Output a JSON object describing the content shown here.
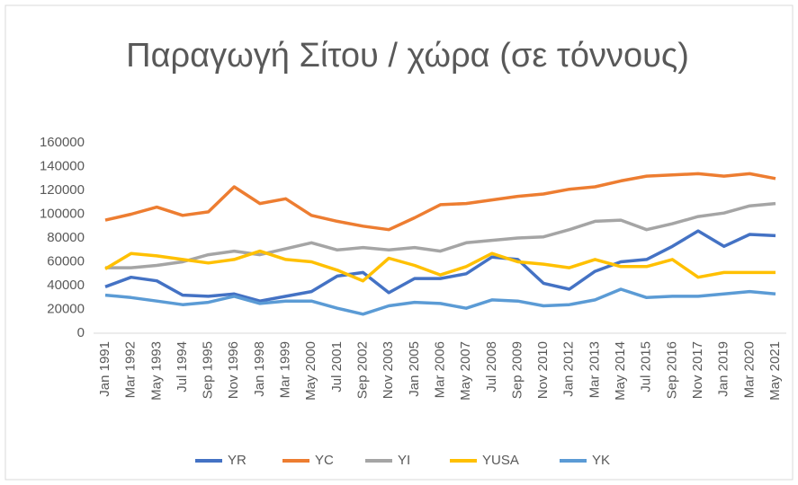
{
  "chart_data": {
    "type": "line",
    "title": "Παραγωγή Σίτου / χώρα (σε τόννους)",
    "categories": [
      "Jan 1991",
      "Mar 1992",
      "May 1993",
      "Jul 1994",
      "Sep 1995",
      "Nov 1996",
      "Jan 1998",
      "Mar 1999",
      "May 2000",
      "Jul 2001",
      "Sep 2002",
      "Nov 2003",
      "Jan 2005",
      "Mar 2006",
      "May 2007",
      "Jul 2008",
      "Sep 2009",
      "Nov 2010",
      "Jan 2012",
      "Mar 2013",
      "May 2014",
      "Jul 2015",
      "Sep 2016",
      "Nov 2017",
      "Jan 2019",
      "Mar 2020",
      "May 2021"
    ],
    "series": [
      {
        "name": "YR",
        "color": "#4472c4",
        "values": [
          39000,
          47000,
          44000,
          32000,
          31000,
          33000,
          27000,
          31000,
          35000,
          48000,
          51000,
          34000,
          46000,
          46000,
          50000,
          64000,
          62000,
          42000,
          37000,
          52000,
          60000,
          62000,
          73000,
          86000,
          73000,
          83000,
          82000
        ]
      },
      {
        "name": "YC",
        "color": "#ed7d31",
        "values": [
          95000,
          100000,
          106000,
          99000,
          102000,
          123000,
          109000,
          113000,
          99000,
          94000,
          90000,
          87000,
          97000,
          108000,
          109000,
          112000,
          115000,
          117000,
          121000,
          123000,
          128000,
          132000,
          133000,
          134000,
          132000,
          134000,
          130000
        ]
      },
      {
        "name": "YI",
        "color": "#a5a5a5",
        "values": [
          55000,
          55000,
          57000,
          60000,
          66000,
          69000,
          66000,
          71000,
          76000,
          70000,
          72000,
          70000,
          72000,
          69000,
          76000,
          78000,
          80000,
          81000,
          87000,
          94000,
          95000,
          87000,
          92000,
          98000,
          101000,
          107000,
          109000
        ]
      },
      {
        "name": "YUSA",
        "color": "#ffc000",
        "values": [
          54000,
          67000,
          65000,
          62000,
          59000,
          62000,
          69000,
          62000,
          60000,
          53000,
          44000,
          63000,
          57000,
          49000,
          56000,
          67000,
          60000,
          58000,
          55000,
          62000,
          56000,
          56000,
          62000,
          47000,
          51000,
          51000,
          51000
        ]
      },
      {
        "name": "YK",
        "color": "#5b9bd5",
        "values": [
          32000,
          30000,
          27000,
          24000,
          26000,
          31000,
          25000,
          27000,
          27000,
          21000,
          16000,
          23000,
          26000,
          25000,
          21000,
          28000,
          27000,
          23000,
          24000,
          28000,
          37000,
          30000,
          31000,
          31000,
          33000,
          35000,
          33000
        ]
      }
    ],
    "ylim": [
      0,
      160000
    ],
    "yticks": [
      0,
      20000,
      40000,
      60000,
      80000,
      100000,
      120000,
      140000,
      160000
    ],
    "legend": "bottom"
  }
}
